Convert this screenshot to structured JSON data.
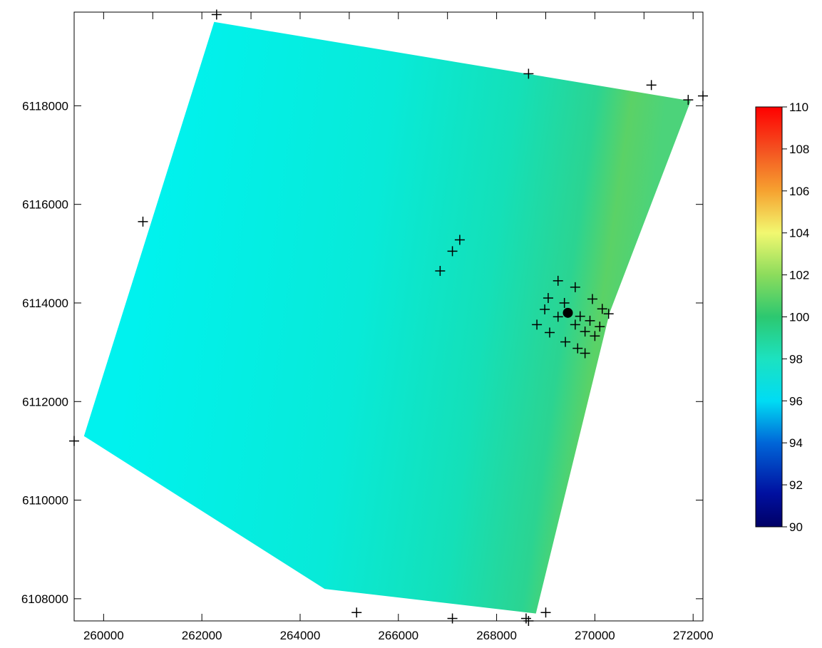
{
  "chart_data": {
    "type": "heatmap",
    "title": "",
    "xlabel": "",
    "ylabel": "",
    "xlim": [
      259400,
      272200
    ],
    "ylim": [
      6107550,
      6119900
    ],
    "x_ticks": [
      260000,
      262000,
      264000,
      266000,
      268000,
      270000,
      272000
    ],
    "x_tick_labels": [
      "260000",
      "262000",
      "264000",
      "266000",
      "268000",
      "270000",
      "272000"
    ],
    "y_ticks": [
      6108000,
      6110000,
      6112000,
      6114000,
      6116000,
      6118000
    ],
    "y_tick_labels": [
      "6108000",
      "6110000",
      "6112000",
      "6114000",
      "6116000",
      "6118000"
    ],
    "colorbar": {
      "range": [
        90,
        110
      ],
      "ticks": [
        90,
        92,
        94,
        96,
        98,
        100,
        102,
        104,
        106,
        108,
        110
      ],
      "tick_labels": [
        "90",
        "92",
        "94",
        "96",
        "98",
        "100",
        "102",
        "104",
        "106",
        "108",
        "110"
      ],
      "colormap": "jet"
    },
    "grid_region_polygon": [
      [
        262250,
        6119700
      ],
      [
        271950,
        6118100
      ],
      [
        270300,
        6113800
      ],
      [
        268800,
        6107700
      ],
      [
        264500,
        6108200
      ],
      [
        259600,
        6111300
      ]
    ],
    "value_field": {
      "description_values": "approx. 95 in west rising to 100 along NE-SW ridge near x=270000",
      "west_value": 95.3,
      "ridge_value": 100.2
    },
    "marker_points": [
      {
        "x": 260800,
        "y": 6115650
      },
      {
        "x": 262300,
        "y": 6119850
      },
      {
        "x": 259400,
        "y": 6111200
      },
      {
        "x": 266850,
        "y": 6114650
      },
      {
        "x": 267100,
        "y": 6115050
      },
      {
        "x": 267250,
        "y": 6115280
      },
      {
        "x": 268650,
        "y": 6118650
      },
      {
        "x": 271150,
        "y": 6118420
      },
      {
        "x": 271900,
        "y": 6118120
      },
      {
        "x": 272200,
        "y": 6118200
      },
      {
        "x": 265150,
        "y": 6107720
      },
      {
        "x": 267100,
        "y": 6107600
      },
      {
        "x": 268600,
        "y": 6107600
      },
      {
        "x": 268650,
        "y": 6107550
      },
      {
        "x": 269000,
        "y": 6107720
      },
      {
        "x": 269250,
        "y": 6114450
      },
      {
        "x": 269600,
        "y": 6114320
      },
      {
        "x": 269050,
        "y": 6114100
      },
      {
        "x": 269380,
        "y": 6114000
      },
      {
        "x": 269950,
        "y": 6114080
      },
      {
        "x": 268980,
        "y": 6113870
      },
      {
        "x": 269250,
        "y": 6113720
      },
      {
        "x": 269700,
        "y": 6113730
      },
      {
        "x": 270150,
        "y": 6113880
      },
      {
        "x": 270280,
        "y": 6113780
      },
      {
        "x": 268820,
        "y": 6113560
      },
      {
        "x": 269600,
        "y": 6113560
      },
      {
        "x": 269900,
        "y": 6113640
      },
      {
        "x": 270100,
        "y": 6113520
      },
      {
        "x": 269080,
        "y": 6113400
      },
      {
        "x": 269800,
        "y": 6113420
      },
      {
        "x": 270000,
        "y": 6113330
      },
      {
        "x": 269400,
        "y": 6113210
      },
      {
        "x": 269650,
        "y": 6113080
      },
      {
        "x": 269800,
        "y": 6112980
      }
    ],
    "center_point": {
      "x": 269450,
      "y": 6113800
    },
    "grid": false,
    "legend": "colorbar-right"
  }
}
